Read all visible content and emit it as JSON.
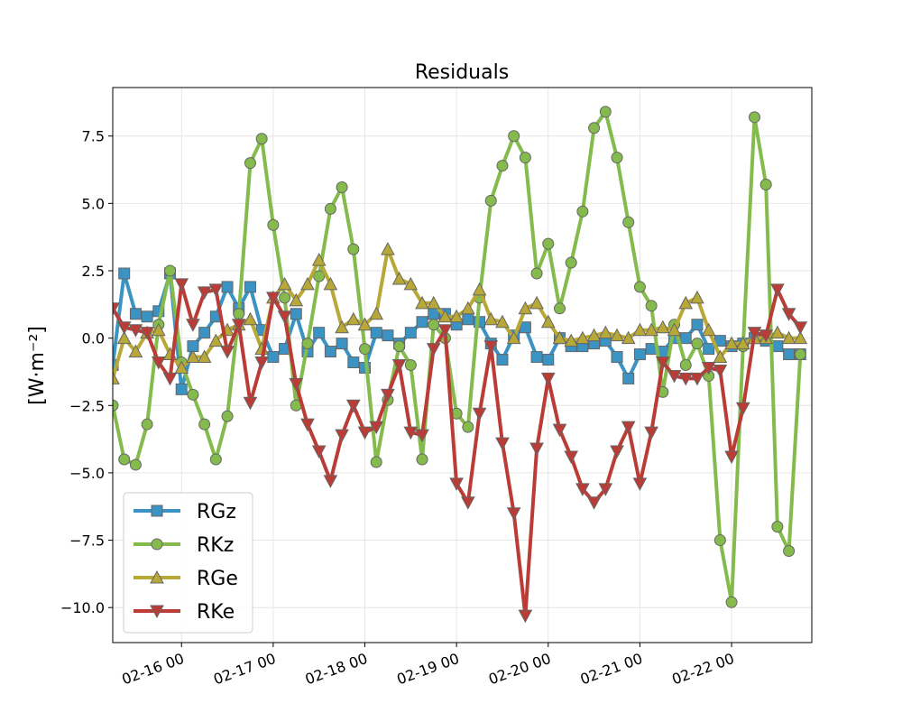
{
  "chart_data": {
    "type": "line",
    "title": "Residuals",
    "xlabel": "",
    "ylabel": "[W·m⁻²]",
    "x_unit": "hours",
    "x_start": "02-15 06:00",
    "x_step_hours": 3,
    "xlim": [
      "02-15 06:00",
      "02-22 21:00"
    ],
    "ylim": [
      -11.3,
      9.3
    ],
    "grid": true,
    "legend_position": "lower-left",
    "x_ticks": [
      "02-16 00",
      "02-17 00",
      "02-18 00",
      "02-19 00",
      "02-20 00",
      "02-21 00",
      "02-22 00"
    ],
    "y_ticks": [
      -10.0,
      -7.5,
      -5.0,
      -2.5,
      0.0,
      2.5,
      5.0,
      7.5
    ],
    "y_tick_labels": [
      "−10.0",
      "−7.5",
      "−5.0",
      "−2.5",
      "0.0",
      "2.5",
      "5.0",
      "7.5"
    ],
    "series": [
      {
        "name": "RGz",
        "color": "#3a93c3",
        "marker": "square",
        "values": [
          -1.0,
          2.4,
          0.9,
          0.8,
          1.0,
          2.4,
          -1.9,
          -0.3,
          0.2,
          0.8,
          1.9,
          1.1,
          1.9,
          0.3,
          -0.7,
          -0.4,
          0.9,
          -0.5,
          0.2,
          -0.5,
          -0.2,
          -0.9,
          -1.1,
          0.2,
          0.1,
          -0.2,
          0.2,
          0.6,
          0.9,
          0.9,
          0.5,
          0.7,
          0.6,
          -0.2,
          -0.8,
          0.1,
          0.4,
          -0.7,
          -0.8,
          -0.0,
          -0.3,
          -0.3,
          -0.2,
          -0.1,
          -0.7,
          -1.5,
          -0.6,
          -0.4,
          -0.5,
          0.0,
          0.0,
          0.5,
          -0.4,
          -0.1,
          -0.3,
          -0.2,
          0.0,
          -0.1,
          -0.3,
          -0.6,
          -0.6
        ]
      },
      {
        "name": "RKz",
        "color": "#84bb4c",
        "marker": "circle",
        "values": [
          -2.5,
          -4.5,
          -4.7,
          -3.2,
          0.5,
          2.5,
          -0.9,
          -2.1,
          -3.2,
          -4.5,
          -2.9,
          0.9,
          6.5,
          7.4,
          4.2,
          1.5,
          -2.5,
          -0.2,
          2.3,
          4.8,
          5.6,
          3.3,
          -0.4,
          -4.6,
          -2.3,
          -0.3,
          -1.0,
          -4.5,
          0.5,
          0.0,
          -2.8,
          -3.3,
          1.5,
          5.1,
          6.4,
          7.5,
          6.7,
          2.4,
          3.5,
          1.1,
          2.8,
          4.7,
          7.8,
          8.4,
          6.7,
          4.3,
          1.9,
          1.2,
          -2.0,
          0.5,
          -1.0,
          -0.2,
          -1.4,
          -7.5,
          -9.8,
          -0.3,
          8.2,
          5.7,
          -7.0,
          -7.9,
          -0.6
        ]
      },
      {
        "name": "RGe",
        "color": "#b8a838",
        "marker": "triangle-up",
        "values": [
          -1.5,
          0.0,
          -0.5,
          0.2,
          0.3,
          -0.6,
          -1.1,
          -0.7,
          -0.7,
          -0.1,
          0.3,
          0.5,
          0.7,
          -0.4,
          1.5,
          2.0,
          1.4,
          2.0,
          2.9,
          2.0,
          0.4,
          0.7,
          0.5,
          0.9,
          3.3,
          2.2,
          2.0,
          1.3,
          1.3,
          0.8,
          0.8,
          1.1,
          1.8,
          0.7,
          0.6,
          0.0,
          1.1,
          1.3,
          0.6,
          0.0,
          -0.1,
          0.0,
          0.1,
          0.2,
          0.1,
          0.0,
          0.3,
          0.3,
          0.4,
          0.3,
          1.3,
          1.5,
          0.3,
          -0.7,
          -0.2,
          -0.2,
          0.0,
          0.0,
          0.2,
          0.0,
          0.0
        ]
      },
      {
        "name": "RKe",
        "color": "#b93c37",
        "marker": "triangle-down",
        "values": [
          1.1,
          0.4,
          0.3,
          0.2,
          -0.9,
          -1.5,
          2.0,
          0.5,
          1.7,
          1.8,
          -0.5,
          0.5,
          -2.4,
          -0.9,
          1.5,
          0.8,
          -1.7,
          -3.2,
          -4.2,
          -5.3,
          -3.6,
          -2.5,
          -3.5,
          -3.3,
          -2.1,
          -1.0,
          -3.5,
          -3.6,
          -0.4,
          0.3,
          -5.4,
          -6.1,
          -2.8,
          -0.3,
          -3.9,
          -6.5,
          -10.3,
          -4.1,
          -1.5,
          -3.4,
          -4.4,
          -5.6,
          -6.1,
          -5.6,
          -4.2,
          -3.3,
          -5.4,
          -3.5,
          -0.9,
          -1.4,
          -1.5,
          -1.5,
          -1.1,
          -1.2,
          -4.4,
          -2.6,
          0.2,
          0.1,
          1.8,
          0.9,
          0.4
        ]
      }
    ]
  }
}
